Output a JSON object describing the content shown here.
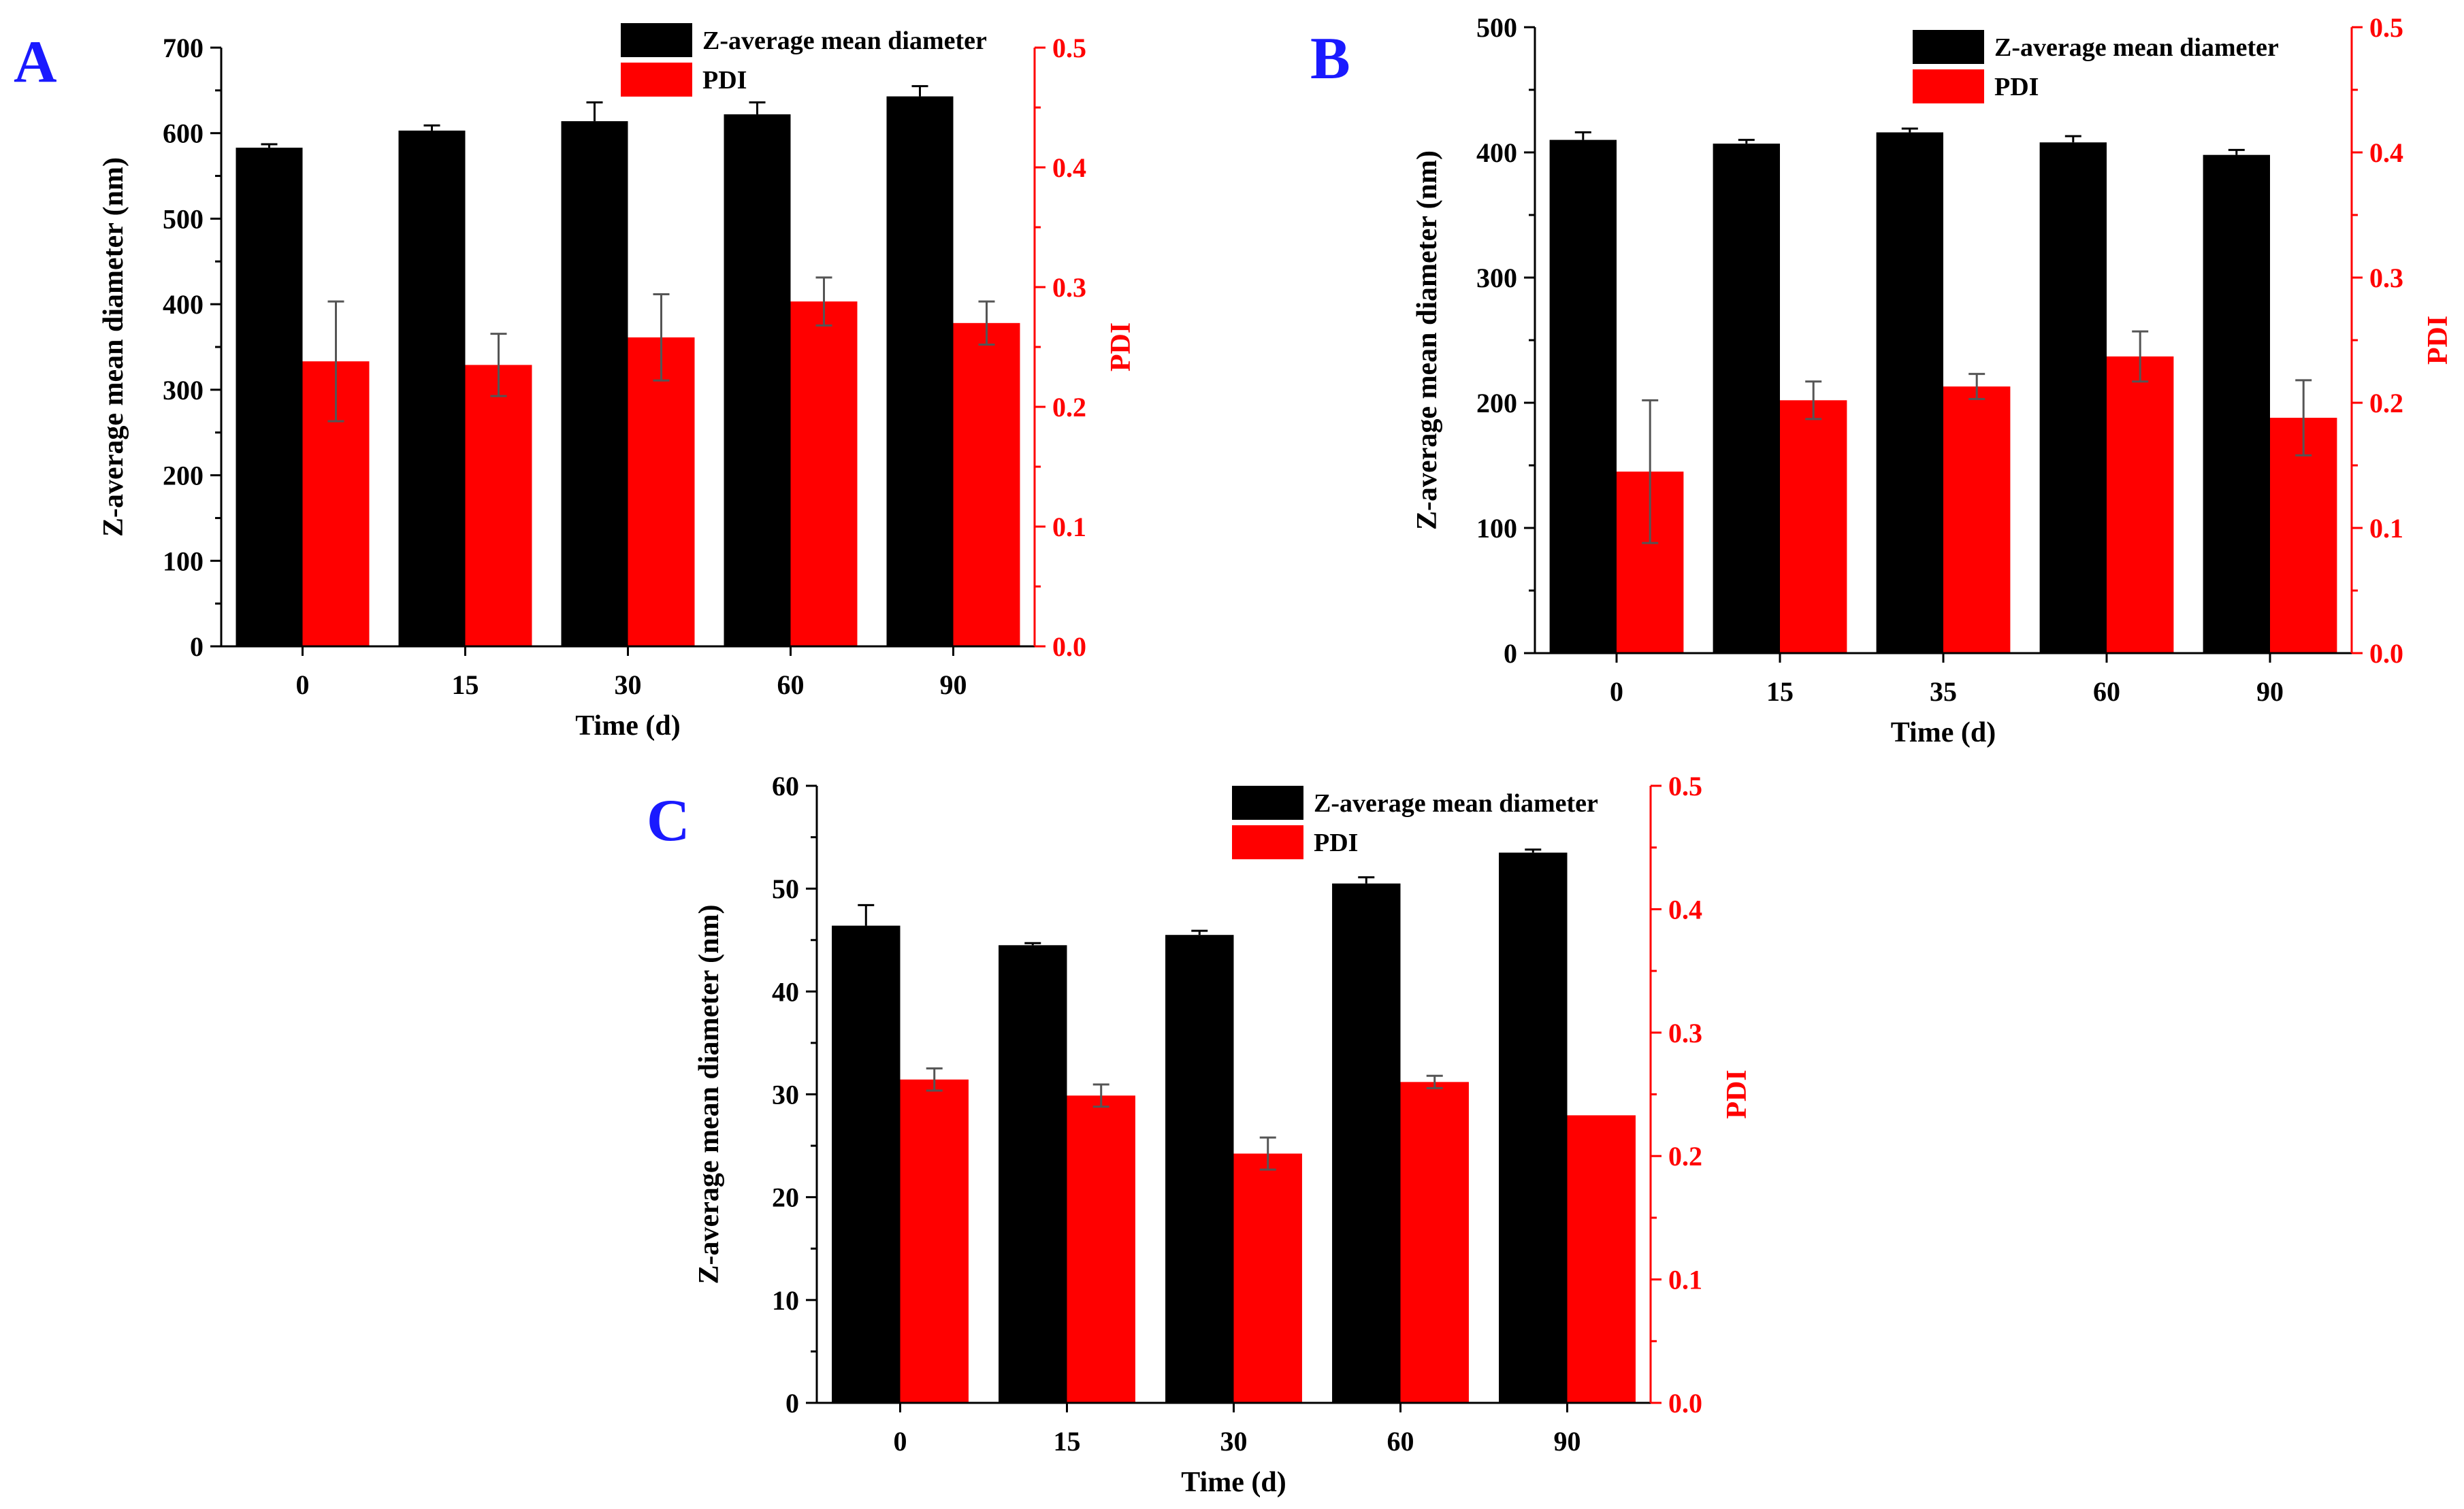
{
  "colors": {
    "diameter": "#000000",
    "pdi": "#ff0000",
    "panel_letter": "#1a1aff",
    "axis_left": "#000000",
    "axis_right": "#ff0000"
  },
  "chart_data": [
    {
      "panel": "A",
      "type": "bar",
      "categories": [
        "0",
        "15",
        "30",
        "60",
        "90"
      ],
      "xlabel": "Time (d)",
      "ylabel": "Z-average mean diameter (nm)",
      "y2label": "PDI",
      "ylim": [
        0,
        700
      ],
      "yticks": [
        0,
        100,
        200,
        300,
        400,
        500,
        600,
        700
      ],
      "y2lim": [
        0,
        0.5
      ],
      "y2ticks": [
        "0.0",
        "0.1",
        "0.2",
        "0.3",
        "0.4",
        "0.5"
      ],
      "legend_position": "top-right",
      "grid": false,
      "series": [
        {
          "name": "Z-average mean diameter",
          "axis": "left",
          "values": [
            583,
            603,
            614,
            622,
            643
          ],
          "errors": [
            4,
            6,
            22,
            14,
            12
          ]
        },
        {
          "name": "PDI",
          "axis": "right",
          "values": [
            0.238,
            0.235,
            0.258,
            0.288,
            0.27
          ],
          "errors": [
            0.05,
            0.026,
            0.036,
            0.02,
            0.018
          ]
        }
      ]
    },
    {
      "panel": "B",
      "type": "bar",
      "categories": [
        "0",
        "15",
        "35",
        "60",
        "90"
      ],
      "xlabel": "Time (d)",
      "ylabel": "Z-average mean diameter (nm)",
      "y2label": "PDI",
      "ylim": [
        0,
        500
      ],
      "yticks": [
        0,
        100,
        200,
        300,
        400,
        500
      ],
      "y2lim": [
        0,
        0.5
      ],
      "y2ticks": [
        "0.0",
        "0.1",
        "0.2",
        "0.3",
        "0.4",
        "0.5"
      ],
      "legend_position": "top-right",
      "grid": false,
      "series": [
        {
          "name": "Z-average mean diameter",
          "axis": "left",
          "values": [
            410,
            407,
            416,
            408,
            398
          ],
          "errors": [
            6,
            3,
            3,
            5,
            4
          ]
        },
        {
          "name": "PDI",
          "axis": "right",
          "values": [
            0.145,
            0.202,
            0.213,
            0.237,
            0.188
          ],
          "errors": [
            0.057,
            0.015,
            0.01,
            0.02,
            0.03
          ]
        }
      ]
    },
    {
      "panel": "C",
      "type": "bar",
      "categories": [
        "0",
        "15",
        "30",
        "60",
        "90"
      ],
      "xlabel": "Time (d)",
      "ylabel": "Z-average mean diameter (nm)",
      "y2label": "PDI",
      "ylim": [
        0,
        60
      ],
      "yticks": [
        0,
        10,
        20,
        30,
        40,
        50,
        60
      ],
      "y2lim": [
        0,
        0.5
      ],
      "y2ticks": [
        "0.0",
        "0.1",
        "0.2",
        "0.3",
        "0.4",
        "0.5"
      ],
      "legend_position": "top-right",
      "grid": false,
      "series": [
        {
          "name": "Z-average mean diameter",
          "axis": "left",
          "values": [
            46.4,
            44.5,
            45.5,
            50.5,
            53.5
          ],
          "errors": [
            2.0,
            0.2,
            0.4,
            0.6,
            0.3
          ]
        },
        {
          "name": "PDI",
          "axis": "right",
          "values": [
            0.262,
            0.249,
            0.202,
            0.26,
            0.233
          ],
          "errors": [
            0.009,
            0.009,
            0.013,
            0.005,
            0.0
          ]
        }
      ]
    }
  ]
}
